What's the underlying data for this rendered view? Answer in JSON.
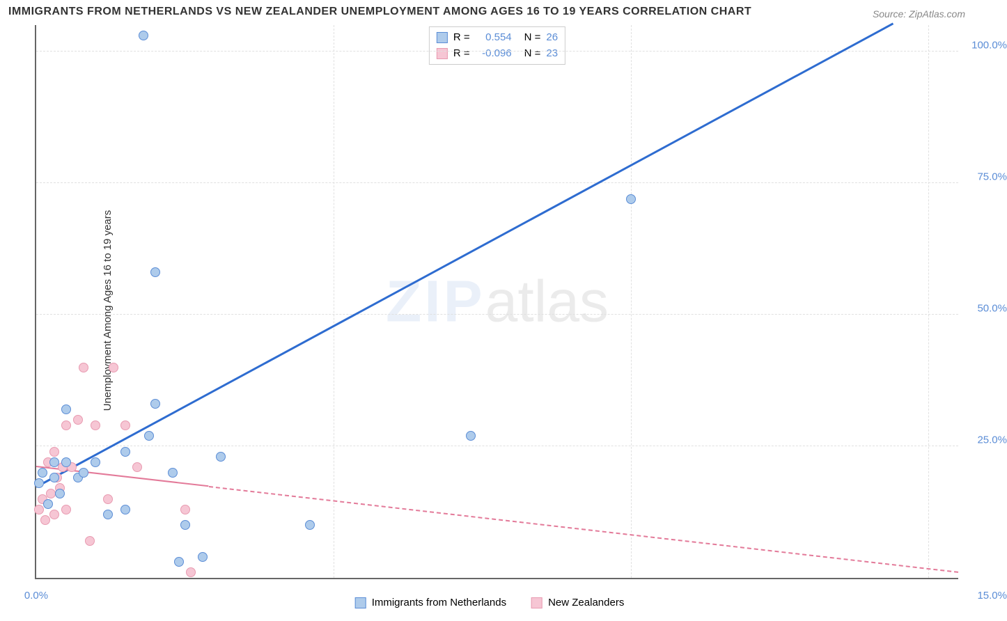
{
  "title": "IMMIGRANTS FROM NETHERLANDS VS NEW ZEALANDER UNEMPLOYMENT AMONG AGES 16 TO 19 YEARS CORRELATION CHART",
  "source_label": "Source:",
  "source_value": "ZipAtlas.com",
  "y_axis_label": "Unemployment Among Ages 16 to 19 years",
  "watermark_a": "ZIP",
  "watermark_b": "atlas",
  "chart": {
    "type": "scatter",
    "xlim": [
      0,
      15.5
    ],
    "ylim": [
      0,
      105
    ],
    "x_ticks": [
      {
        "v": 0,
        "label": "0.0%"
      }
    ],
    "x_end_label": "15.0%",
    "y_ticks": [
      {
        "v": 25,
        "label": "25.0%"
      },
      {
        "v": 50,
        "label": "50.0%"
      },
      {
        "v": 75,
        "label": "75.0%"
      },
      {
        "v": 100,
        "label": "100.0%"
      }
    ],
    "grid_color": "#e0e0e0",
    "axis_color": "#666666",
    "background_color": "#ffffff",
    "marker_size": 14,
    "series": [
      {
        "key": "netherlands",
        "label": "Immigrants from Netherlands",
        "fill": "#aecbeb",
        "stroke": "#5b8dd6",
        "r_label": "R =",
        "r_value": "0.554",
        "n_label": "N =",
        "n_value": "26",
        "trend": {
          "x0": 0,
          "y0": 17,
          "x1": 14.4,
          "y1": 105,
          "color": "#2e6cd0",
          "width": 3,
          "dashed_after_x": null
        },
        "points": [
          [
            0.05,
            18
          ],
          [
            0.1,
            20
          ],
          [
            0.2,
            14
          ],
          [
            0.3,
            19
          ],
          [
            0.3,
            22
          ],
          [
            0.4,
            16
          ],
          [
            0.5,
            22
          ],
          [
            0.5,
            32
          ],
          [
            0.7,
            19
          ],
          [
            0.8,
            20
          ],
          [
            1.0,
            22
          ],
          [
            1.2,
            12
          ],
          [
            1.5,
            13
          ],
          [
            1.5,
            24
          ],
          [
            1.8,
            103
          ],
          [
            1.9,
            27
          ],
          [
            2.0,
            58
          ],
          [
            2.3,
            20
          ],
          [
            2.4,
            3
          ],
          [
            2.5,
            10
          ],
          [
            2.8,
            4
          ],
          [
            3.1,
            23
          ],
          [
            4.6,
            10
          ],
          [
            7.3,
            27
          ],
          [
            10.0,
            72
          ],
          [
            2.0,
            33
          ]
        ]
      },
      {
        "key": "newzealand",
        "label": "New Zealanders",
        "fill": "#f6c6d4",
        "stroke": "#e89ab0",
        "r_label": "R =",
        "r_value": "-0.096",
        "n_label": "N =",
        "n_value": "23",
        "trend": {
          "x0": 0,
          "y0": 21,
          "x1": 15.5,
          "y1": 1,
          "color": "#e37a99",
          "width": 2,
          "dashed_after_x": 2.9
        },
        "points": [
          [
            0.05,
            13
          ],
          [
            0.1,
            15
          ],
          [
            0.15,
            11
          ],
          [
            0.2,
            22
          ],
          [
            0.25,
            16
          ],
          [
            0.3,
            12
          ],
          [
            0.35,
            19
          ],
          [
            0.4,
            17
          ],
          [
            0.45,
            21
          ],
          [
            0.5,
            29
          ],
          [
            0.5,
            13
          ],
          [
            0.6,
            21
          ],
          [
            0.7,
            30
          ],
          [
            0.8,
            40
          ],
          [
            0.9,
            7
          ],
          [
            1.0,
            29
          ],
          [
            1.2,
            15
          ],
          [
            1.3,
            40
          ],
          [
            1.5,
            29
          ],
          [
            1.7,
            21
          ],
          [
            2.5,
            13
          ],
          [
            2.6,
            1
          ],
          [
            0.3,
            24
          ]
        ]
      }
    ]
  },
  "legend_bottom": [
    {
      "swatch_fill": "#aecbeb",
      "swatch_stroke": "#5b8dd6",
      "label": "Immigrants from Netherlands"
    },
    {
      "swatch_fill": "#f6c6d4",
      "swatch_stroke": "#e89ab0",
      "label": "New Zealanders"
    }
  ]
}
